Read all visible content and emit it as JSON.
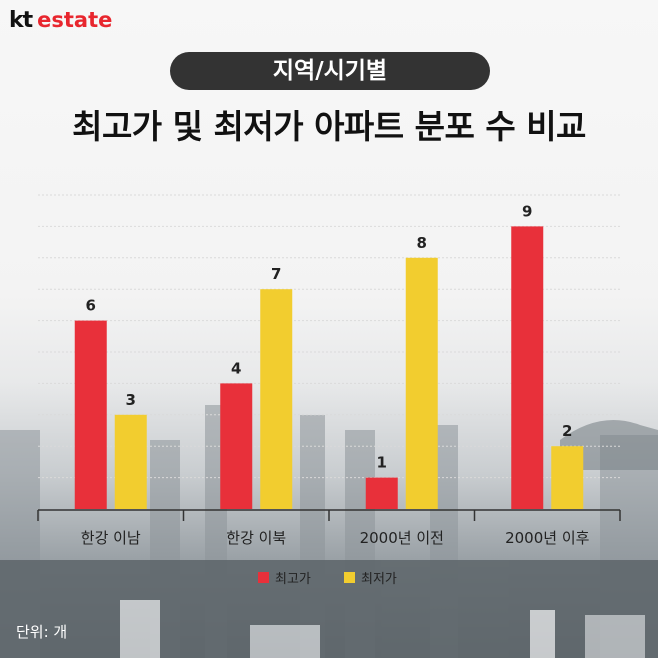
{
  "brand": {
    "kt": "kt",
    "estate": "estate"
  },
  "header": {
    "tag": "지역/시기별",
    "title": "최고가 및 최저가 아파트 분포 수 비교"
  },
  "unit_label": "단위: 개",
  "colors": {
    "highest": "#e8303a",
    "lowest": "#f2cd2f",
    "brand": "#e8262e"
  },
  "chart_data": {
    "type": "bar",
    "title": "최고가 및 최저가 아파트 분포 수 비교",
    "categories": [
      "한강 이남",
      "한강 이북",
      "2000년 이전",
      "2000년 이후"
    ],
    "series": [
      {
        "name": "최고가",
        "values": [
          6,
          4,
          1,
          9
        ]
      },
      {
        "name": "최저가",
        "values": [
          3,
          7,
          8,
          2
        ]
      }
    ],
    "ylim": [
      0,
      10
    ],
    "grid": true,
    "legend": "bottom-center",
    "xlabel": "",
    "ylabel": ""
  }
}
